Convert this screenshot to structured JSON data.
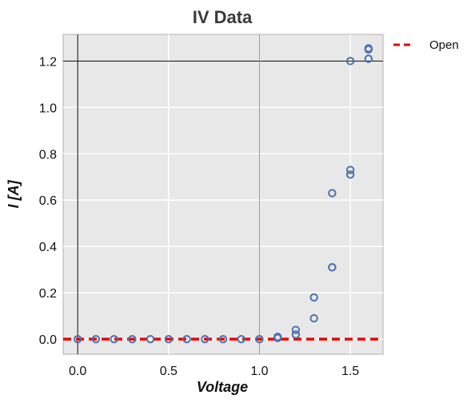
{
  "chart_data": {
    "type": "scatter",
    "title": "IV Data",
    "xlabel": "Voltage",
    "ylabel": "I [A]",
    "xlim": [
      -0.08,
      1.68
    ],
    "ylim": [
      -0.065,
      1.315
    ],
    "xticks": [
      0.0,
      0.5,
      1.0,
      1.5
    ],
    "yticks": [
      0.0,
      0.2,
      0.4,
      0.6,
      0.8,
      1.0,
      1.2
    ],
    "xtick_labels": [
      "0.0",
      "0.5",
      "1.0",
      "1.5"
    ],
    "ytick_labels": [
      "0.0",
      "0.2",
      "0.4",
      "0.6",
      "0.8",
      "1.0",
      "1.2"
    ],
    "grid": true,
    "legend_position": "outside-top-right",
    "reference_lines": [
      {
        "orientation": "vertical",
        "value": 0.0,
        "color": "#000000"
      },
      {
        "orientation": "horizontal",
        "value": 1.2,
        "color": "#000000"
      },
      {
        "orientation": "vertical",
        "value": 1.0,
        "color": "#33dd33"
      }
    ],
    "series": [
      {
        "kind": "points",
        "color": "#4c72b0",
        "points": [
          [
            0.0,
            0.0
          ],
          [
            0.1,
            0.0
          ],
          [
            0.2,
            0.0
          ],
          [
            0.3,
            0.0
          ],
          [
            0.4,
            0.0
          ],
          [
            0.5,
            0.0
          ],
          [
            0.6,
            0.0
          ],
          [
            0.7,
            0.0
          ],
          [
            0.8,
            0.0
          ],
          [
            0.9,
            0.0
          ],
          [
            1.0,
            0.0
          ],
          [
            1.1,
            0.005
          ],
          [
            1.1,
            0.01
          ],
          [
            1.2,
            0.02
          ],
          [
            1.2,
            0.04
          ],
          [
            1.3,
            0.09
          ],
          [
            1.3,
            0.18
          ],
          [
            1.4,
            0.31
          ],
          [
            1.4,
            0.31
          ],
          [
            1.4,
            0.63
          ],
          [
            1.5,
            0.71
          ],
          [
            1.5,
            0.73
          ],
          [
            1.5,
            1.2
          ],
          [
            1.6,
            1.21
          ],
          [
            1.6,
            1.25
          ],
          [
            1.6,
            1.255
          ]
        ]
      },
      {
        "name": "Open",
        "kind": "line",
        "style": "dashed",
        "color": "#ee0000",
        "x": [
          -0.08,
          1.68
        ],
        "y": [
          0.0,
          0.0
        ]
      }
    ]
  }
}
